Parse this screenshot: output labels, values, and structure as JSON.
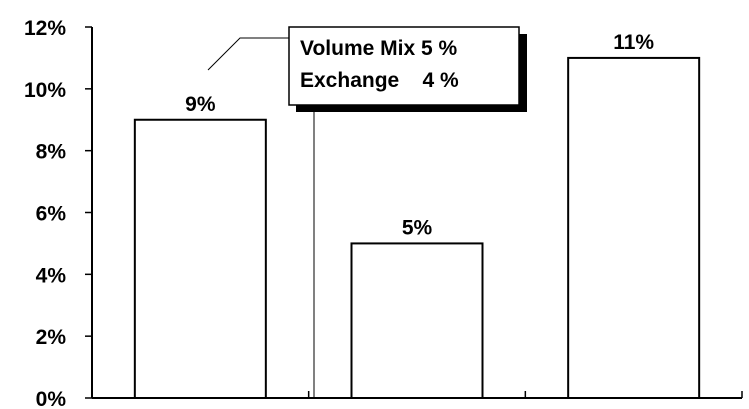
{
  "chart_data": {
    "type": "bar",
    "categories": [
      "",
      "",
      ""
    ],
    "values": [
      9,
      5,
      11
    ],
    "value_labels": [
      "9%",
      "5%",
      "11%"
    ],
    "ylim": [
      0,
      12
    ],
    "yticks": [
      0,
      2,
      4,
      6,
      8,
      10,
      12
    ],
    "ytick_labels": [
      "0%",
      "2%",
      "4%",
      "6%",
      "8%",
      "10%",
      "12%"
    ],
    "title": "",
    "xlabel": "",
    "ylabel": "",
    "grid": false,
    "bar_fill": "#ffffff",
    "bar_edge": "#000000",
    "annotation": {
      "lines": [
        "Volume Mix 5 %",
        "Exchange    4 %"
      ]
    }
  }
}
